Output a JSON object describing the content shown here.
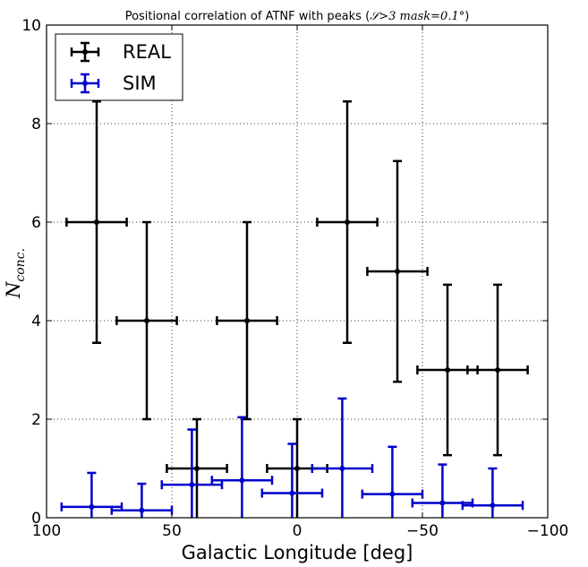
{
  "chart_data": {
    "type": "scatter",
    "title_prefix": "Positional correlation of ATNF with peaks (",
    "title_math": "𝒮>3 mask=0.1°",
    "title_suffix": ")",
    "xlabel": "Galactic Longitude [deg]",
    "ylabel": "N",
    "ylabel_sub": "conc.",
    "xlim": [
      100,
      -100
    ],
    "ylim": [
      0,
      10
    ],
    "x_inverted": true,
    "x_ticks": [
      100,
      50,
      0,
      -50,
      -100
    ],
    "x_tick_labels": [
      "100",
      "50",
      "0",
      "−50",
      "−100"
    ],
    "y_ticks": [
      0,
      2,
      4,
      6,
      8,
      10
    ],
    "y_tick_labels": [
      "0",
      "2",
      "4",
      "6",
      "8",
      "10"
    ],
    "grid": true,
    "grid_style": "dotted",
    "legend_position": "top-left",
    "series": [
      {
        "name": "REAL",
        "color": "#000000",
        "points": [
          {
            "x": 80,
            "y": 6,
            "xerr": 12,
            "yerr_low": 2.45,
            "yerr_high": 2.45
          },
          {
            "x": 60,
            "y": 4,
            "xerr": 12,
            "yerr_low": 2.0,
            "yerr_high": 2.0
          },
          {
            "x": 40,
            "y": 1,
            "xerr": 12,
            "yerr_low": 1.0,
            "yerr_high": 1.0
          },
          {
            "x": 20,
            "y": 4,
            "xerr": 12,
            "yerr_low": 2.0,
            "yerr_high": 2.0
          },
          {
            "x": 0,
            "y": 1,
            "xerr": 12,
            "yerr_low": 1.0,
            "yerr_high": 1.0
          },
          {
            "x": -20,
            "y": 6,
            "xerr": 12,
            "yerr_low": 2.45,
            "yerr_high": 2.45
          },
          {
            "x": -40,
            "y": 5,
            "xerr": 12,
            "yerr_low": 2.24,
            "yerr_high": 2.24
          },
          {
            "x": -60,
            "y": 3,
            "xerr": 12,
            "yerr_low": 1.73,
            "yerr_high": 1.73
          },
          {
            "x": -80,
            "y": 3,
            "xerr": 12,
            "yerr_low": 1.73,
            "yerr_high": 1.73
          }
        ]
      },
      {
        "name": "SIM",
        "color": "#0000cc",
        "points": [
          {
            "x": 82,
            "y": 0.22,
            "xerr": 12,
            "yerr_low": 0.22,
            "yerr_high": 0.69
          },
          {
            "x": 62,
            "y": 0.15,
            "xerr": 12,
            "yerr_low": 0.15,
            "yerr_high": 0.54
          },
          {
            "x": 42,
            "y": 0.67,
            "xerr": 12,
            "yerr_low": 0.67,
            "yerr_high": 1.12
          },
          {
            "x": 22,
            "y": 0.76,
            "xerr": 12,
            "yerr_low": 0.76,
            "yerr_high": 1.28
          },
          {
            "x": 2,
            "y": 0.5,
            "xerr": 12,
            "yerr_low": 0.5,
            "yerr_high": 1.0
          },
          {
            "x": -18,
            "y": 1.0,
            "xerr": 12,
            "yerr_low": 1.0,
            "yerr_high": 1.42
          },
          {
            "x": -38,
            "y": 0.48,
            "xerr": 12,
            "yerr_low": 0.48,
            "yerr_high": 0.96
          },
          {
            "x": -58,
            "y": 0.3,
            "xerr": 12,
            "yerr_low": 0.3,
            "yerr_high": 0.78
          },
          {
            "x": -78,
            "y": 0.25,
            "xerr": 12,
            "yerr_low": 0.25,
            "yerr_high": 0.75
          }
        ]
      }
    ]
  }
}
